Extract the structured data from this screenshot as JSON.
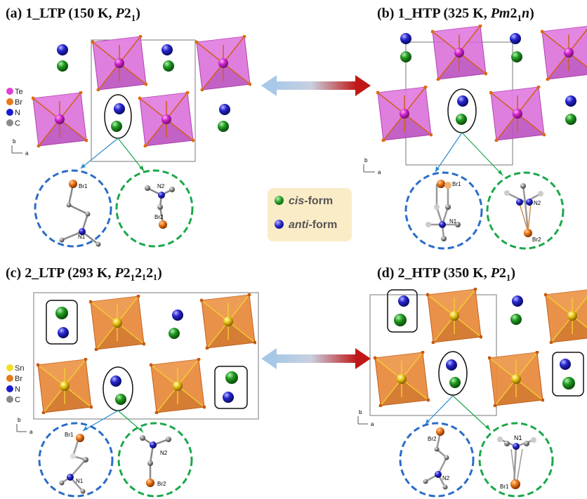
{
  "panels": [
    {
      "letter": "(a)",
      "name": "1_LTP",
      "temp": "150 K",
      "sg_main": "P",
      "sg_rest": "2",
      "sg_sub": "1",
      "sg_tail": ""
    },
    {
      "letter": "(b)",
      "name": "1_HTP",
      "temp": "325 K",
      "sg_main": "Pm",
      "sg_rest": "2",
      "sg_sub": "1",
      "sg_tail": "n"
    },
    {
      "letter": "(c)",
      "name": "2_LTP",
      "temp": "293 K",
      "sg_main": "P",
      "sg_rest": "2",
      "sg_sub": "1",
      "sg_tail": "2₁2₁"
    },
    {
      "letter": "(d)",
      "name": "2_HTP",
      "temp": "350 K",
      "sg_main": "P",
      "sg_rest": "2",
      "sg_sub": "1",
      "sg_tail": ""
    }
  ],
  "legend": {
    "cis": {
      "prefix": "cis",
      "suffix": "-form",
      "color": "#1a8a1a"
    },
    "anti": {
      "prefix": "anti",
      "suffix": "-form",
      "color": "#2323c8"
    }
  },
  "element_legend_top": [
    {
      "symbol": "Te",
      "color": "#e040d0"
    },
    {
      "symbol": "Br",
      "color": "#e87a1a"
    },
    {
      "symbol": "N",
      "color": "#1a1ad0"
    },
    {
      "symbol": "C",
      "color": "#8a8a8a"
    }
  ],
  "element_legend_bottom": [
    {
      "symbol": "Sn",
      "color": "#f0e020"
    },
    {
      "symbol": "Br",
      "color": "#e87a1a"
    },
    {
      "symbol": "N",
      "color": "#1a1ad0"
    },
    {
      "symbol": "C",
      "color": "#8a8a8a"
    }
  ],
  "axis_labels": {
    "b": "b",
    "a": "a"
  },
  "atom_labels": {
    "a_left_br": "Br1",
    "a_left_n": "N1",
    "a_right_n": "N2",
    "a_right_br": "Br2",
    "b_left_br": "Br1",
    "b_left_n": "N1",
    "b_right_n": "N2",
    "b_right_br": "Br2",
    "c_left_br": "Br1",
    "c_left_n": "N1",
    "c_right_n": "N2",
    "c_right_br": "Br2",
    "d_left_br": "Br2",
    "d_left_n": "N2",
    "d_right_n": "N1",
    "d_right_br": "Br1"
  },
  "colors": {
    "te_octahedron": "#d060d8",
    "sn_octahedron": "#e8883a",
    "cis_ball": "#1a8a1a",
    "anti_ball": "#2323c8",
    "blue_circle": "#2a6cc8",
    "green_circle": "#1aa84a",
    "arrow_left": "#a8c8e8",
    "arrow_right": "#c01818"
  }
}
